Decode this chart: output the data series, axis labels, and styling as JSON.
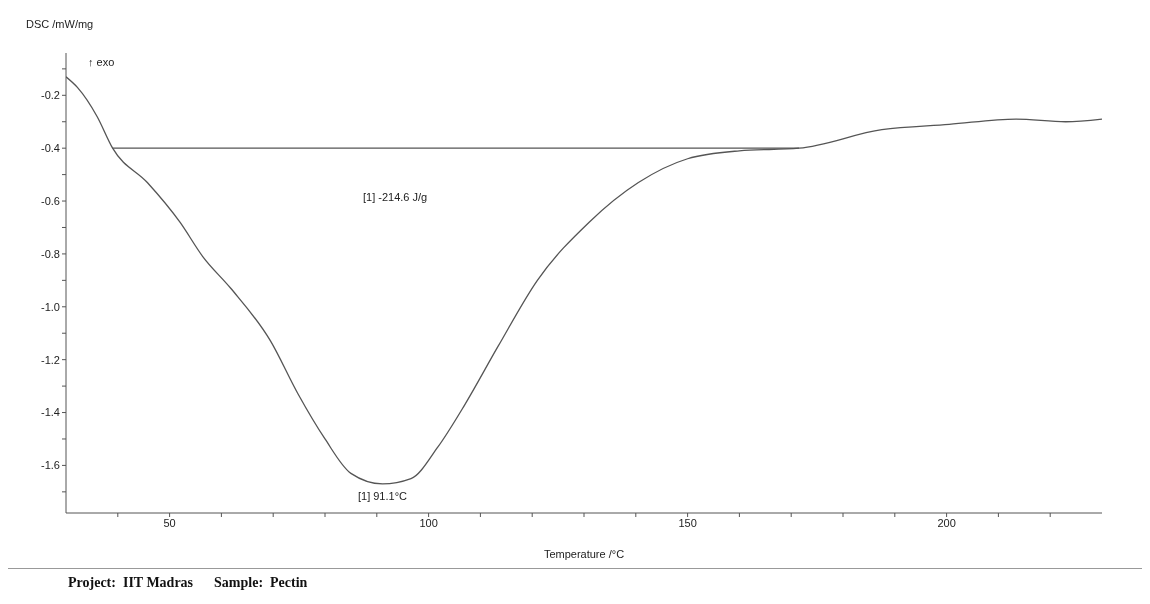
{
  "chart_data": {
    "type": "line",
    "xlabel": "Temperature /°C",
    "ylabel": "DSC /mW/mg",
    "annotations": [
      "↑ exo",
      "[1] -214.6 J/g",
      {
        "text": "[1] 91.1°C",
        "x": 91.1,
        "y": -1.67
      },
      "Project:  IIT Madras      Sample:  Pectin"
    ],
    "xlim": [
      30,
      230
    ],
    "xticks": [
      {
        "value": 40,
        "label": null
      },
      50,
      {
        "value": 60,
        "label": null
      },
      {
        "value": 70,
        "label": null
      },
      {
        "value": 80,
        "label": null
      },
      {
        "value": 90,
        "label": null
      },
      100,
      {
        "value": 110,
        "label": null
      },
      {
        "value": 120,
        "label": null
      },
      {
        "value": 130,
        "label": null
      },
      {
        "value": 140,
        "label": null
      },
      150,
      {
        "value": 160,
        "label": null
      },
      {
        "value": 170,
        "label": null
      },
      {
        "value": 180,
        "label": null
      },
      {
        "value": 190,
        "label": null
      },
      200,
      {
        "value": 210,
        "label": null
      },
      {
        "value": 220,
        "label": null
      }
    ],
    "ylim": [
      -1.78,
      -0.04
    ],
    "yticks": [
      {
        "value": -0.1,
        "label": null
      },
      -0.2,
      {
        "value": -0.3,
        "label": null
      },
      -0.4,
      {
        "value": -0.5,
        "label": null
      },
      -0.6,
      {
        "value": -0.7,
        "label": null
      },
      -0.8,
      {
        "value": -0.9,
        "label": null
      },
      {
        "value": -1.0,
        "label": "-1.0"
      },
      {
        "value": -1.1,
        "label": null
      },
      -1.2,
      {
        "value": -1.3,
        "label": null
      },
      -1.4,
      {
        "value": -1.5,
        "label": null
      },
      -1.6,
      {
        "value": -1.7,
        "label": null
      }
    ],
    "marker": "none",
    "line_style": "solid",
    "series": [
      {
        "color": "#555555",
        "x": [
          30,
          32.2,
          36,
          39,
          45.7,
          52,
          56.4,
          61.8,
          69.5,
          74.8,
          80,
          85,
          91.1,
          96.6,
          101.8,
          107,
          113.4,
          121,
          131,
          140.5,
          150,
          160,
          171.5,
          187.5,
          200.5,
          213.4,
          223,
          230
        ],
        "values": [
          -0.13,
          -0.17,
          -0.28,
          -0.4,
          -0.53,
          -0.68,
          -0.81,
          -0.93,
          -1.13,
          -1.33,
          -1.5,
          -1.63,
          -1.67,
          -1.65,
          -1.53,
          -1.37,
          -1.15,
          -0.9,
          -0.68,
          -0.53,
          -0.44,
          -0.41,
          -0.4,
          -0.33,
          -0.31,
          -0.29,
          -0.3,
          -0.29
        ]
      },
      {
        "color": "#555555",
        "x": [
          39,
          171.5
        ],
        "values": [
          -0.4,
          -0.4
        ]
      }
    ]
  }
}
